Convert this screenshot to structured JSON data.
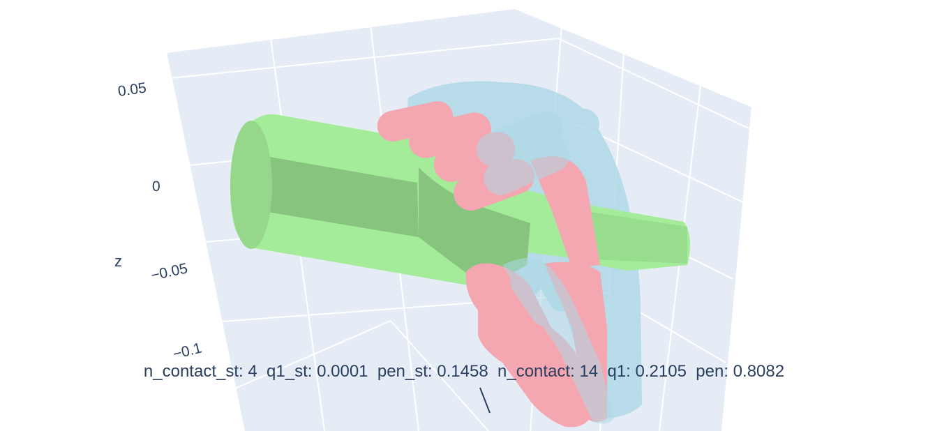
{
  "scene": {
    "axes": {
      "z_title": "z",
      "z_ticks": [
        "0.05",
        "0",
        "−0.05",
        "−0.1"
      ]
    },
    "colors": {
      "background_plane": "#e5ecf6",
      "grid": "#ffffff",
      "object_mesh": "#90ee90",
      "hand_start": "#f4a7b0",
      "hand_optimized": "#add8e6",
      "text": "#2a3f5f"
    },
    "meshes": [
      "object",
      "hand-start",
      "hand-optimized"
    ]
  },
  "metrics": {
    "n_contact_st_label": "n_contact_st:",
    "n_contact_st": "4",
    "q1_st_label": "q1_st:",
    "q1_st": "0.0001",
    "pen_st_label": "pen_st:",
    "pen_st": "0.1458",
    "n_contact_label": "n_contact:",
    "n_contact": "14",
    "q1_label": "q1:",
    "q1": "0.2105",
    "pen_label": "pen:",
    "pen": "0.8082"
  }
}
